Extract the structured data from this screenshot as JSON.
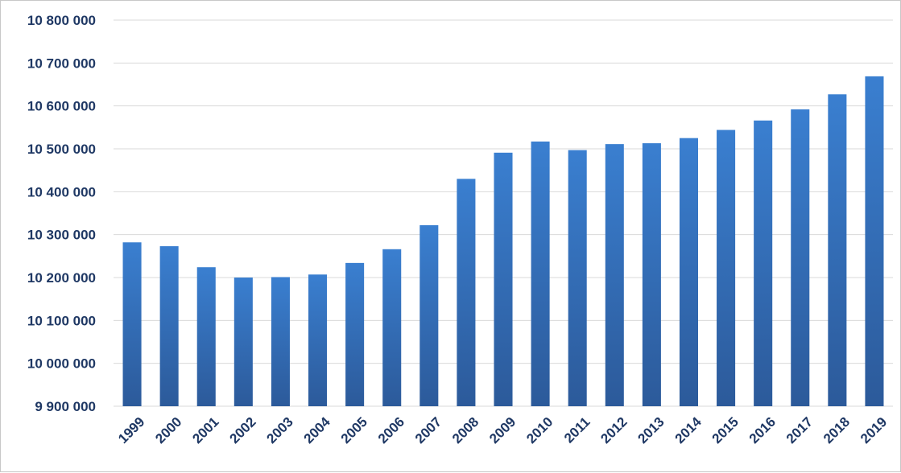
{
  "chart_data": {
    "type": "bar",
    "categories": [
      "1999",
      "2000",
      "2001",
      "2002",
      "2003",
      "2004",
      "2005",
      "2006",
      "2007",
      "2008",
      "2009",
      "2010",
      "2011",
      "2012",
      "2013",
      "2014",
      "2015",
      "2016",
      "2017",
      "2018",
      "2019"
    ],
    "values": [
      10282000,
      10273000,
      10224000,
      10200000,
      10201000,
      10207000,
      10234000,
      10266000,
      10322000,
      10430000,
      10491000,
      10517000,
      10497000,
      10511000,
      10513000,
      10525000,
      10544000,
      10566000,
      10592000,
      10627000,
      10669000
    ],
    "ylim": [
      9900000,
      10800000
    ],
    "yticks": [
      9900000,
      10000000,
      10100000,
      10200000,
      10300000,
      10400000,
      10500000,
      10600000,
      10700000,
      10800000
    ],
    "ytick_labels": [
      "9 900 000",
      "10 000 000",
      "10 100 000",
      "10 200 000",
      "10 300 000",
      "10 400 000",
      "10 500 000",
      "10 600 000",
      "10 700 000",
      "10 800 000"
    ],
    "grid": true,
    "legend": "none",
    "title": "",
    "xlabel": "",
    "ylabel": "",
    "colors": {
      "bar_top": "#3a7fd0",
      "bar_bottom": "#2c5a9a",
      "grid": "#d9d9d9",
      "tick_text": "#1f3864"
    }
  }
}
